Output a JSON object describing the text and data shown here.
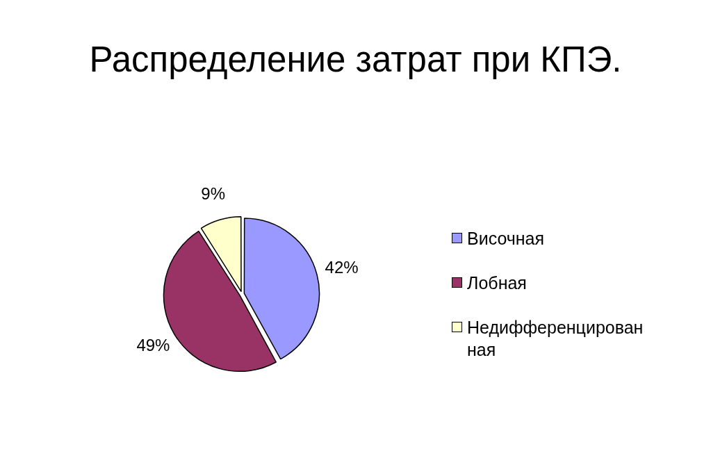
{
  "chart_data": {
    "type": "pie",
    "title": "Распределение затрат при КПЭ.",
    "categories": [
      "Височная",
      "Лобная",
      "Недифференцированная"
    ],
    "values": [
      42,
      49,
      9
    ],
    "colors": [
      "#9999ff",
      "#993366",
      "#ffffcc"
    ],
    "value_labels": [
      "42%",
      "49%",
      "9%"
    ],
    "legend": "right"
  }
}
